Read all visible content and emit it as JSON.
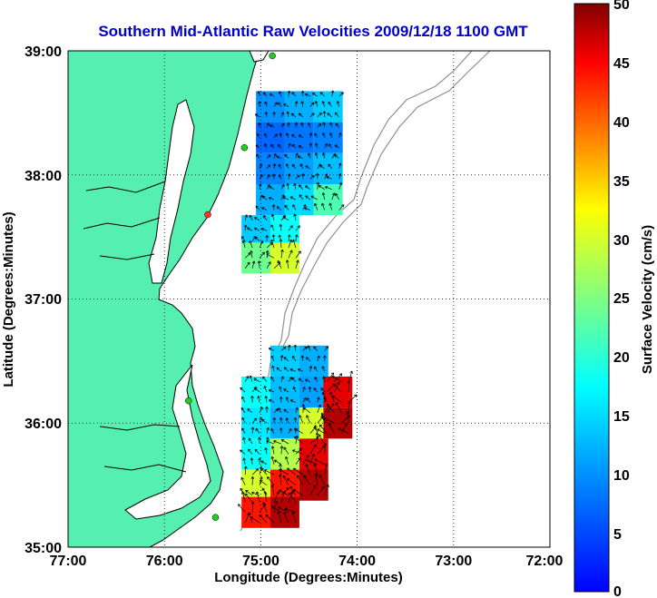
{
  "chart_data": {
    "type": "heatmap",
    "title": "Southern Mid-Atlantic Raw Velocities 2009/12/18 1100 GMT",
    "xlabel": "Longitude (Degrees:Minutes)",
    "ylabel": "Latitude (Degrees:Minutes)",
    "colorbar_label": "Surface Velocity (cm/s)",
    "x_ticks": [
      "77:00",
      "76:00",
      "75:00",
      "74:00",
      "73:00",
      "72:00"
    ],
    "y_ticks": [
      "39:00",
      "38:00",
      "37:00",
      "36:00",
      "35:00"
    ],
    "colorbar_ticks": [
      "50",
      "45",
      "40",
      "35",
      "30",
      "25",
      "20",
      "15",
      "10",
      "5",
      "0"
    ],
    "xlim": [
      -77,
      -72
    ],
    "ylim": [
      35,
      39
    ],
    "clim": [
      0,
      50
    ],
    "grid": true,
    "colormap": "jet",
    "colors": {
      "title": "#0000cc",
      "land": "#55f0b0",
      "coast": "#000000",
      "bathymetry": "#909090",
      "grid": "#000000"
    },
    "stations": [
      {
        "lon": -74.88,
        "lat": 38.96,
        "color": "#22cc22"
      },
      {
        "lon": -75.17,
        "lat": 38.22,
        "color": "#22cc22"
      },
      {
        "lon": -75.55,
        "lat": 37.68,
        "color": "#ff3333"
      },
      {
        "lon": -75.75,
        "lat": 36.18,
        "color": "#22cc22"
      },
      {
        "lon": -75.47,
        "lat": 35.24,
        "color": "#22cc22"
      }
    ],
    "regions": [
      {
        "name": "",
        "cells": [
          {
            "lon": -74.9,
            "lat": 38.55,
            "v": 10
          },
          {
            "lon": -74.6,
            "lat": 38.55,
            "v": 12
          },
          {
            "lon": -74.3,
            "lat": 38.55,
            "v": 14
          },
          {
            "lon": -74.9,
            "lat": 38.3,
            "v": 7
          },
          {
            "lon": -74.6,
            "lat": 38.3,
            "v": 8
          },
          {
            "lon": -74.3,
            "lat": 38.3,
            "v": 9
          },
          {
            "lon": -74.9,
            "lat": 38.05,
            "v": 9
          },
          {
            "lon": -74.6,
            "lat": 38.05,
            "v": 11
          },
          {
            "lon": -74.3,
            "lat": 38.05,
            "v": 13
          },
          {
            "lon": -74.9,
            "lat": 37.8,
            "v": 12
          },
          {
            "lon": -74.6,
            "lat": 37.8,
            "v": 15
          },
          {
            "lon": -74.3,
            "lat": 37.8,
            "v": 22
          },
          {
            "lon": -75.05,
            "lat": 37.55,
            "v": 14
          },
          {
            "lon": -74.75,
            "lat": 37.55,
            "v": 18
          },
          {
            "lon": -75.05,
            "lat": 37.33,
            "v": 24
          },
          {
            "lon": -74.75,
            "lat": 37.33,
            "v": 30
          }
        ]
      },
      {
        "name": "",
        "cells": [
          {
            "lon": -74.75,
            "lat": 36.5,
            "v": 14
          },
          {
            "lon": -74.45,
            "lat": 36.5,
            "v": 12
          },
          {
            "lon": -75.05,
            "lat": 36.25,
            "v": 18
          },
          {
            "lon": -74.75,
            "lat": 36.25,
            "v": 13
          },
          {
            "lon": -74.45,
            "lat": 36.25,
            "v": 11
          },
          {
            "lon": -74.2,
            "lat": 36.25,
            "v": 46
          },
          {
            "lon": -75.05,
            "lat": 36.0,
            "v": 16
          },
          {
            "lon": -74.75,
            "lat": 36.0,
            "v": 12
          },
          {
            "lon": -74.45,
            "lat": 36.0,
            "v": 30
          },
          {
            "lon": -74.2,
            "lat": 36.0,
            "v": 48
          },
          {
            "lon": -75.05,
            "lat": 35.75,
            "v": 18
          },
          {
            "lon": -74.75,
            "lat": 35.75,
            "v": 28
          },
          {
            "lon": -74.45,
            "lat": 35.75,
            "v": 46
          },
          {
            "lon": -75.05,
            "lat": 35.5,
            "v": 30
          },
          {
            "lon": -74.75,
            "lat": 35.5,
            "v": 44
          },
          {
            "lon": -74.45,
            "lat": 35.5,
            "v": 48
          },
          {
            "lon": -75.05,
            "lat": 35.28,
            "v": 44
          },
          {
            "lon": -74.75,
            "lat": 35.28,
            "v": 48
          }
        ]
      }
    ]
  }
}
